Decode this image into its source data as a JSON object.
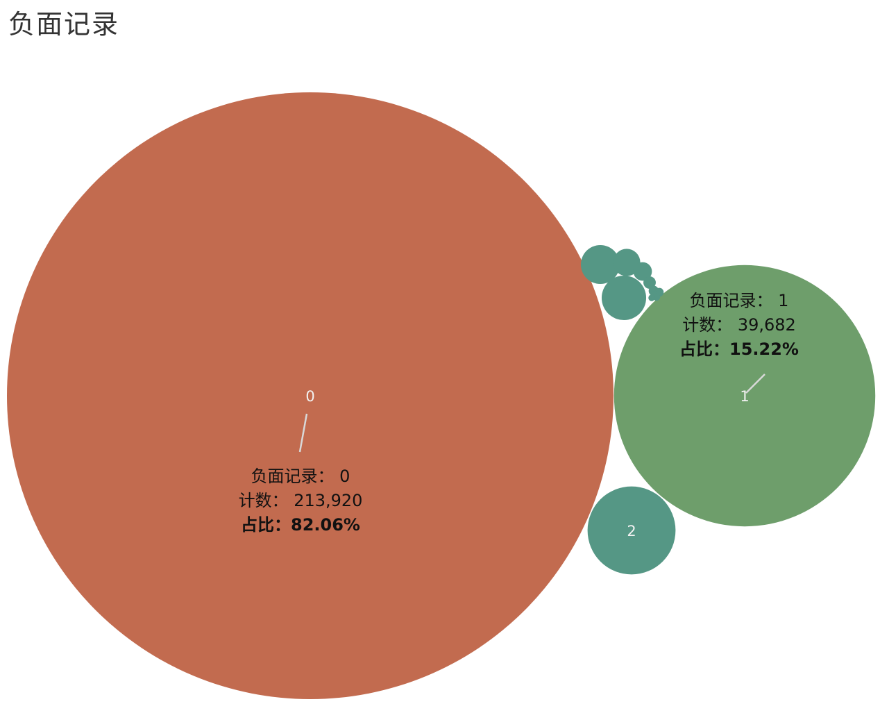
{
  "title": "负面记录",
  "colors": {
    "zero": "#c26b4f",
    "one": "#6e9e6b",
    "other": "#559785",
    "label": "#f2f2f2",
    "leader": "#d9d9d9"
  },
  "chart_data": {
    "type": "packed-bubble",
    "title": "负面记录",
    "size_field": "计数",
    "key_label": "负面记录",
    "count_label": "计数",
    "share_label": "占比",
    "series": [
      {
        "label": "0",
        "count": 213920,
        "count_text": "213,920",
        "share": "82.06%",
        "color": "#c26b4f",
        "show_label": true,
        "annotated": true
      },
      {
        "label": "1",
        "count": 39682,
        "count_text": "39,682",
        "share": "15.22%",
        "color": "#6e9e6b",
        "show_label": true,
        "annotated": true
      },
      {
        "label": "2",
        "count": 4500,
        "color": "#559785",
        "show_label": true,
        "annotated": false
      },
      {
        "label": "",
        "count": 1150,
        "color": "#559785",
        "show_label": false,
        "annotated": false
      },
      {
        "label": "",
        "count": 880,
        "color": "#559785",
        "show_label": false,
        "annotated": false
      },
      {
        "label": "",
        "count": 430,
        "color": "#559785",
        "show_label": false,
        "annotated": false
      },
      {
        "label": "",
        "count": 200,
        "color": "#559785",
        "show_label": false,
        "annotated": false
      },
      {
        "label": "",
        "count": 90,
        "color": "#559785",
        "show_label": false,
        "annotated": false
      },
      {
        "label": "",
        "count": 60,
        "color": "#559785",
        "show_label": false,
        "annotated": false
      },
      {
        "label": "",
        "count": 45,
        "color": "#559785",
        "show_label": false,
        "annotated": false
      },
      {
        "label": "",
        "count": 35,
        "color": "#559785",
        "show_label": false,
        "annotated": false
      },
      {
        "label": "",
        "count": 30,
        "color": "#559785",
        "show_label": false,
        "annotated": false
      },
      {
        "label": "",
        "count": 25,
        "color": "#559785",
        "show_label": false,
        "annotated": false
      }
    ]
  }
}
